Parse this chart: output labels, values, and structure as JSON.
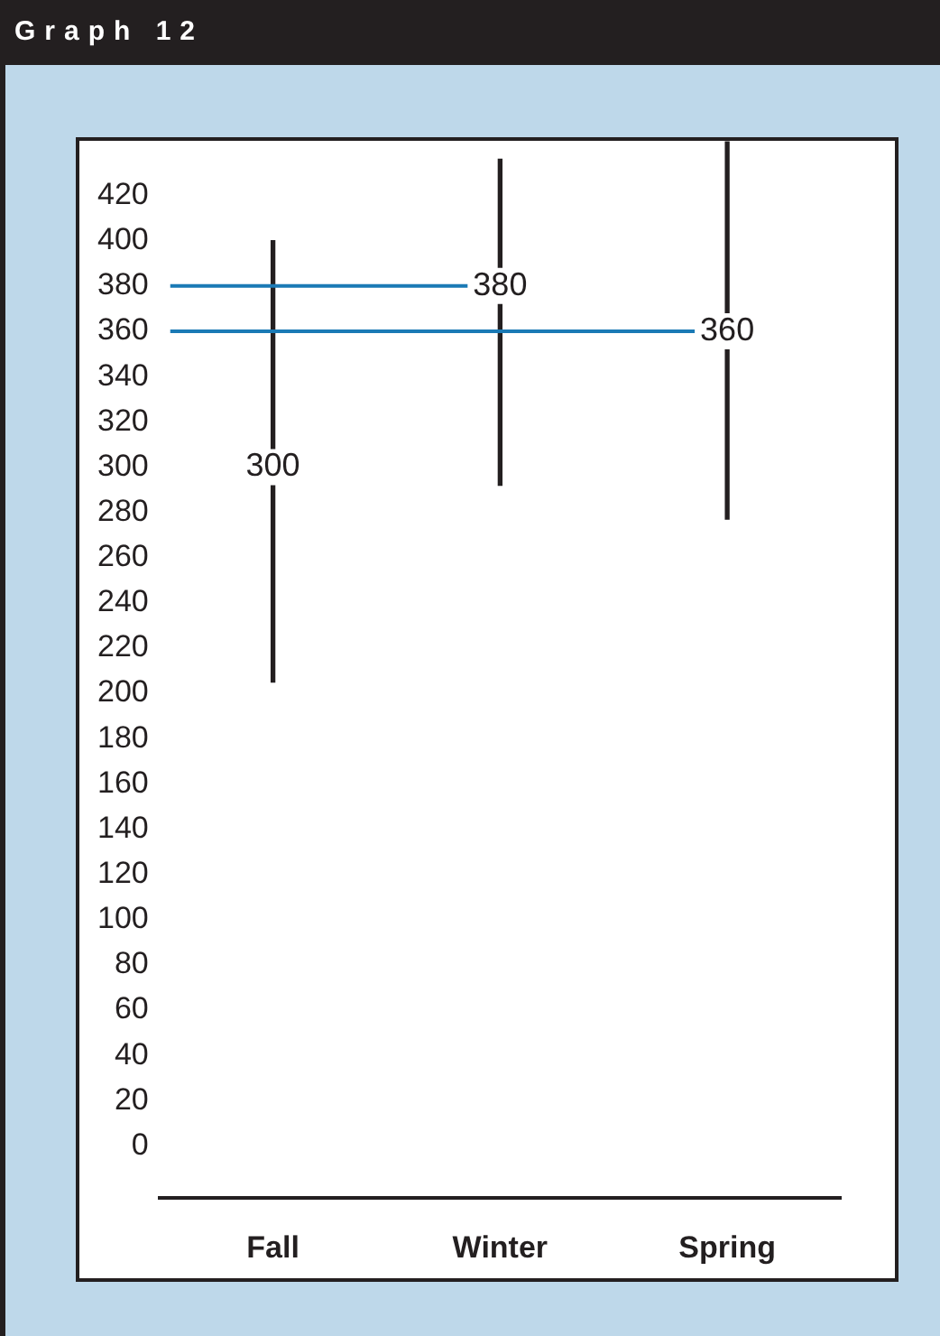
{
  "chart_data": {
    "type": "bar",
    "title": "Graph 12",
    "categories": [
      "Fall",
      "Winter",
      "Spring"
    ],
    "series": [
      {
        "color": "#231f20",
        "base": [
          205,
          292,
          277
        ],
        "values": [
          195,
          144,
          167
        ]
      }
    ],
    "annotations": [
      {
        "text": "300",
        "x": "Fall",
        "y": 300
      },
      {
        "text": "380",
        "x": "Winter",
        "y": 380
      },
      {
        "text": "360",
        "x": "Spring",
        "y": 360
      }
    ],
    "ref_lines": [
      {
        "axis": "y",
        "value": 380,
        "color": "#1a7ab5"
      },
      {
        "axis": "y",
        "value": 360,
        "color": "#1a7ab5"
      }
    ],
    "ylim": [
      -23,
      444
    ],
    "yticks": [
      0,
      20,
      40,
      60,
      80,
      100,
      120,
      140,
      160,
      180,
      200,
      220,
      240,
      260,
      280,
      300,
      320,
      340,
      360,
      380,
      400,
      420
    ],
    "grid": false
  }
}
